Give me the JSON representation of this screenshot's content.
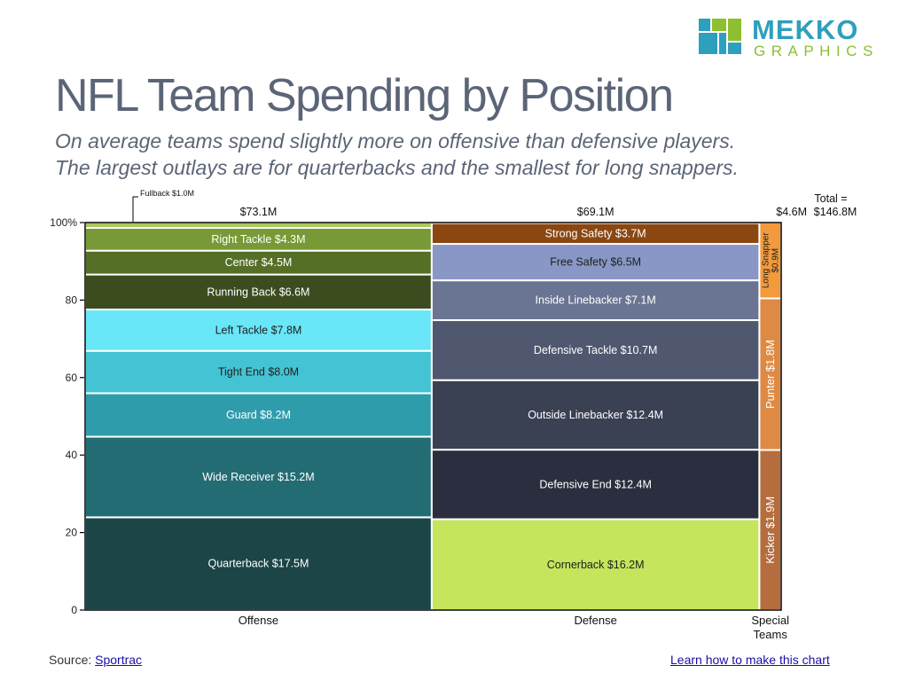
{
  "logo": {
    "word": "MEKKO",
    "sub": "GRAPHICS"
  },
  "title": "NFL Team Spending by Position",
  "subtitle_line1": "On average teams spend slightly more on offensive than defensive players.",
  "subtitle_line2": "The largest outlays are for quarterbacks and the smallest for long snappers.",
  "footer": {
    "source_prefix": "Source: ",
    "source_link": "Sportrac",
    "learn_link": "Learn how to make this chart"
  },
  "chart_data": {
    "type": "mekko",
    "ylim": [
      0,
      100
    ],
    "yticks": [
      0,
      20,
      40,
      60,
      80,
      100
    ],
    "ytick_labels": [
      "0",
      "20",
      "40",
      "60",
      "80",
      "100%"
    ],
    "total_label": [
      "Total =",
      "$146.8M"
    ],
    "columns": [
      {
        "name": "Offense",
        "name_lines": [
          "Offense"
        ],
        "total": 73.1,
        "total_label": "$73.1M",
        "segments": [
          {
            "label": "Quarterback $17.5M",
            "value": 17.5,
            "color": "#1c4548",
            "text": "#ffffff"
          },
          {
            "label": "Wide Receiver $15.2M",
            "value": 15.2,
            "color": "#236c74",
            "text": "#ffffff"
          },
          {
            "label": "Guard $8.2M",
            "value": 8.2,
            "color": "#2f9cab",
            "text": "#ffffff"
          },
          {
            "label": "Tight End $8.0M",
            "value": 8.0,
            "color": "#44c3d4",
            "text": "#1f1f1f"
          },
          {
            "label": "Left Tackle $7.8M",
            "value": 7.8,
            "color": "#69e6f7",
            "text": "#1f1f1f"
          },
          {
            "label": "Running Back $6.6M",
            "value": 6.6,
            "color": "#3c4c1f",
            "text": "#ffffff"
          },
          {
            "label": "Center $4.5M",
            "value": 4.5,
            "color": "#556f27",
            "text": "#ffffff"
          },
          {
            "label": "Right Tackle $4.3M",
            "value": 4.3,
            "color": "#789a36",
            "text": "#ffffff"
          },
          {
            "label": "Fullback $1.0M",
            "value": 1.0,
            "color": "#a8c85b",
            "text": "#1f1f1f",
            "callout": true
          }
        ]
      },
      {
        "name": "Defense",
        "name_lines": [
          "Defense"
        ],
        "total": 69.1,
        "total_label": "$69.1M",
        "segments": [
          {
            "label": "Cornerback $16.2M",
            "value": 16.2,
            "color": "#c4e55c",
            "text": "#1f1f1f"
          },
          {
            "label": "Defensive End $12.4M",
            "value": 12.4,
            "color": "#2b2e3e",
            "text": "#ffffff"
          },
          {
            "label": "Outside Linebacker $12.4M",
            "value": 12.4,
            "color": "#3a4153",
            "text": "#ffffff"
          },
          {
            "label": "Defensive Tackle $10.7M",
            "value": 10.7,
            "color": "#4f586f",
            "text": "#ffffff"
          },
          {
            "label": "Inside Linebacker $7.1M",
            "value": 7.1,
            "color": "#6a7493",
            "text": "#ffffff"
          },
          {
            "label": "Free Safety $6.5M",
            "value": 6.5,
            "color": "#8897c5",
            "text": "#1f1f1f"
          },
          {
            "label": "Strong Safety $3.7M",
            "value": 3.7,
            "color": "#8a4712",
            "text": "#ffffff"
          }
        ]
      },
      {
        "name": "Special Teams",
        "name_lines": [
          "Special",
          "Teams"
        ],
        "total": 4.6,
        "total_label": "$4.6M",
        "segments": [
          {
            "label": "Kicker $1.9M",
            "value": 1.9,
            "color": "#b56d3d",
            "text": "#ffffff",
            "vertical": true
          },
          {
            "label": "Punter $1.8M",
            "value": 1.8,
            "color": "#df8a44",
            "text": "#ffffff",
            "vertical": true
          },
          {
            "label": "Long Snapper $0.9M",
            "value": 0.9,
            "color": "#f29a3c",
            "text": "#1f1f1f",
            "vertical": true,
            "lines": [
              "Long Snapper",
              "$0.9M"
            ]
          }
        ]
      }
    ]
  }
}
